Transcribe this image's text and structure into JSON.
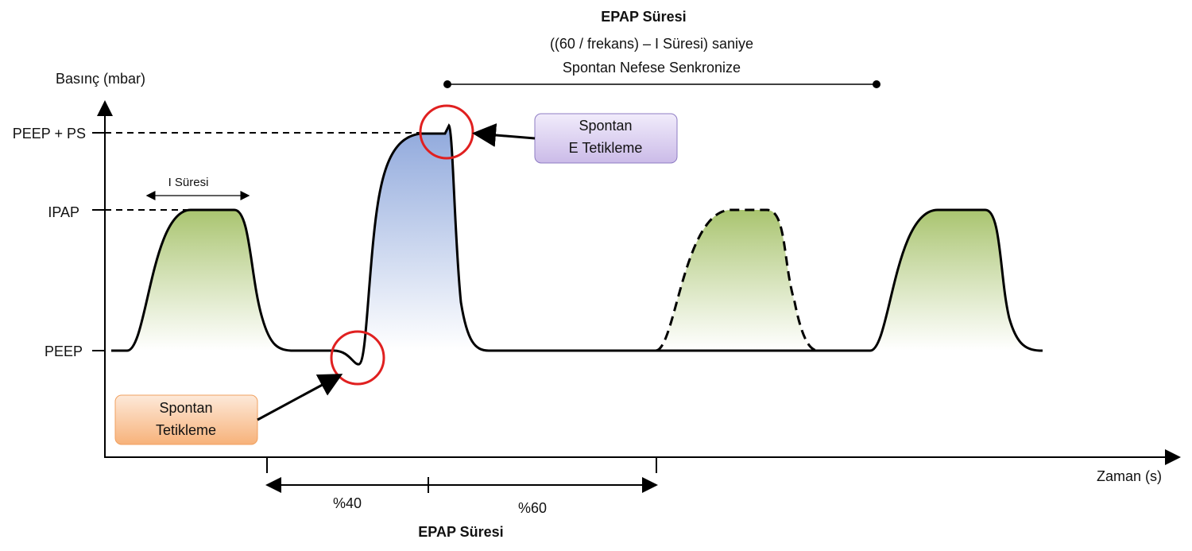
{
  "top_annotation": {
    "title": "EPAP Süresi",
    "formula": "((60 / frekans) – I Süresi) saniye",
    "note": "Spontan Nefese Senkronize"
  },
  "axes": {
    "y_label": "Basınç (mbar)",
    "x_label": "Zaman (s)",
    "levels": [
      "PEEP + PS",
      "IPAP",
      "PEEP"
    ]
  },
  "i_duration": "I Süresi",
  "callouts": [
    {
      "lines": [
        "Spontan",
        "E Tetikleme"
      ]
    },
    {
      "lines": [
        "Spontan",
        "Tetikleme"
      ]
    }
  ],
  "bottom_annotation": {
    "segments": [
      "%40",
      "%60"
    ],
    "title": "EPAP Süresi"
  }
}
